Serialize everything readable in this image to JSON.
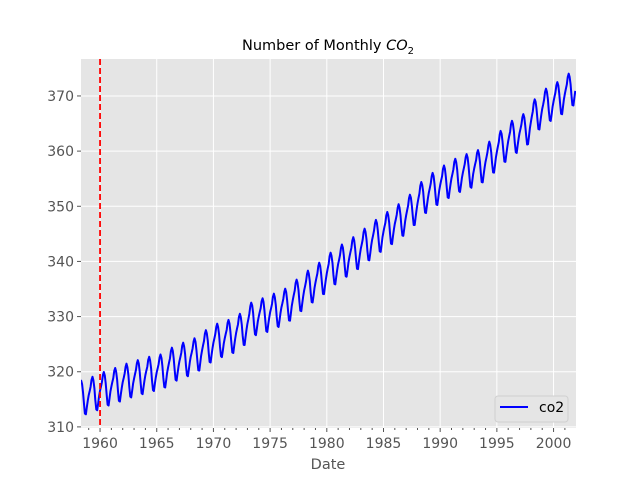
{
  "chart_data": {
    "type": "line",
    "title_main": "Number of Monthly ",
    "title_italic": "CO",
    "title_sub": "2",
    "xlabel": "Date",
    "ylabel": "",
    "xlim": [
      1958.32,
      2001.98
    ],
    "ylim": [
      309.8,
      376.7
    ],
    "x_ticks": [
      1960,
      1965,
      1970,
      1975,
      1980,
      1985,
      1990,
      1995,
      2000
    ],
    "x_tick_labels": [
      "1960",
      "1965",
      "1970",
      "1975",
      "1980",
      "1985",
      "1990",
      "1995",
      "2000"
    ],
    "y_ticks": [
      310,
      320,
      330,
      340,
      350,
      360,
      370
    ],
    "y_tick_labels": [
      "310",
      "320",
      "330",
      "340",
      "350",
      "360",
      "370"
    ],
    "grid": true,
    "legend": {
      "placement": "lower-right",
      "entries": [
        "co2"
      ]
    },
    "series": [
      {
        "name": "co2",
        "color": "#0000ff",
        "frequency": "monthly",
        "start": 1958.25,
        "end": 2001.92,
        "annual_mean_years": [
          1958,
          1959,
          1960,
          1961,
          1962,
          1963,
          1964,
          1965,
          1966,
          1967,
          1968,
          1969,
          1970,
          1971,
          1972,
          1973,
          1974,
          1975,
          1976,
          1977,
          1978,
          1979,
          1980,
          1981,
          1982,
          1983,
          1984,
          1985,
          1986,
          1987,
          1988,
          1989,
          1990,
          1991,
          1992,
          1993,
          1994,
          1995,
          1996,
          1997,
          1998,
          1999,
          2000,
          2001
        ],
        "annual_mean": [
          315.3,
          316.0,
          316.9,
          317.6,
          318.4,
          319.0,
          319.6,
          320.0,
          321.4,
          322.2,
          323.0,
          324.6,
          325.7,
          326.3,
          327.5,
          329.7,
          330.2,
          331.1,
          332.0,
          333.8,
          335.4,
          336.8,
          338.7,
          340.1,
          341.4,
          343.0,
          344.6,
          346.0,
          347.4,
          349.2,
          351.6,
          353.1,
          354.4,
          355.6,
          356.4,
          357.1,
          358.8,
          360.8,
          362.6,
          363.7,
          366.7,
          368.4,
          369.5,
          371.1
        ],
        "seasonal_offset_by_month": [
          0.1,
          0.8,
          1.5,
          2.7,
          3.2,
          2.5,
          1.0,
          -1.2,
          -3.0,
          -3.2,
          -2.0,
          -0.8
        ]
      }
    ],
    "annotations": [
      {
        "type": "vertical-dashed-line",
        "x": 1960,
        "color": "#ff0000"
      }
    ]
  }
}
